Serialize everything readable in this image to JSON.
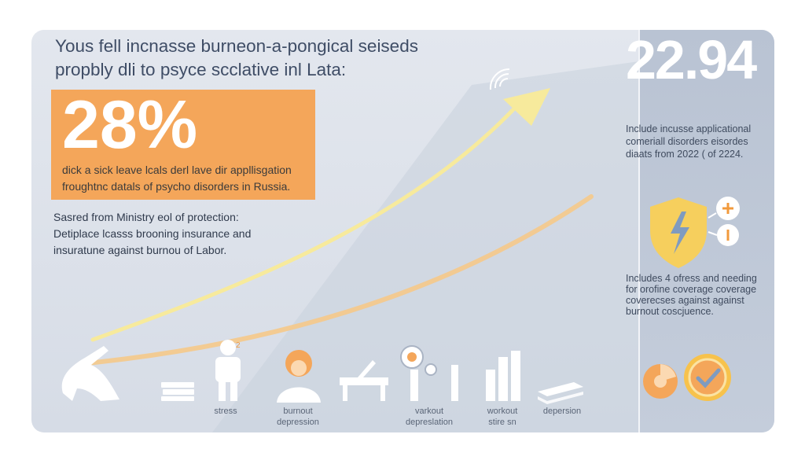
{
  "header": {
    "title_line1": "Yous fell incnasse burneon-a-pongical seiseds",
    "title_line2": "propbly dli to psyce scclative inl Lata:"
  },
  "hero": {
    "value": "28%",
    "description_line1": "dick a sick leave lcals derl lave dir appllisgation",
    "description_line2": "froughtnc datals of psycho disorders in Russia."
  },
  "source": {
    "line1": "Sasred from Ministry eol of protection:",
    "line2": "Detiplace lcasss brooning insurance and",
    "line3": "insuratune against burnou of Labor."
  },
  "stat": {
    "value": "22.94",
    "line1": "Include incusse applicational",
    "line2": "comeriall disorders eisordes",
    "line3": "diaats from 2022 ( of 2224."
  },
  "protection": {
    "line1": "Includes 4 ofress and needing",
    "line2": "for orofine coverage coverage",
    "line3": "coverecses against against",
    "line4": "burnout coscjuence."
  },
  "icons": [
    {
      "name": "stress",
      "caption_line1": "stress",
      "caption_line2": ""
    },
    {
      "name": "burnout-depression",
      "caption_line1": "burnout",
      "caption_line2": "depression"
    },
    {
      "name": "workout-depression",
      "caption_line1": "varkout",
      "caption_line2": "depreslation"
    },
    {
      "name": "workout-stats",
      "caption_line1": "workout",
      "caption_line2": "stire sn"
    },
    {
      "name": "depression",
      "caption_line1": "depersion",
      "caption_line2": ""
    }
  ],
  "colors": {
    "accent_orange": "#f4a65a",
    "accent_yellow": "#f7e79a",
    "shield_yellow": "#f6cf5d",
    "panel_bg": "#bcc6d5",
    "text_dark": "#3f4d66"
  }
}
